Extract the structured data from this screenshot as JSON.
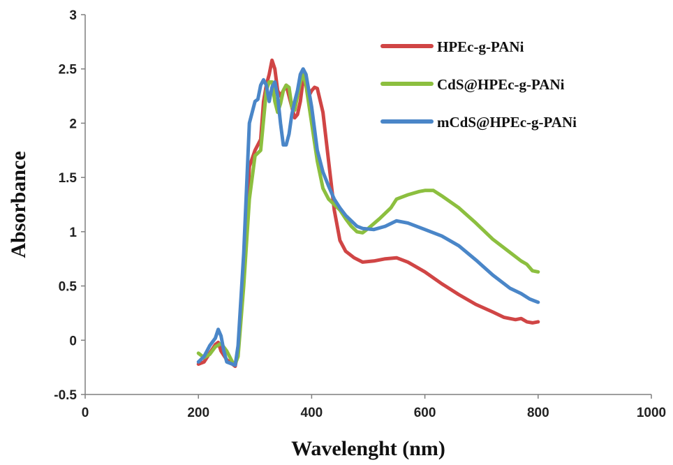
{
  "chart_data": {
    "type": "line",
    "title": "",
    "xlabel": "Wavelenght (nm)",
    "ylabel": "Absorbance",
    "xlim": [
      0,
      1000
    ],
    "ylim": [
      -0.5,
      3
    ],
    "xticks": [
      0,
      200,
      400,
      600,
      800,
      1000
    ],
    "yticks": [
      -0.5,
      0,
      0.5,
      1,
      1.5,
      2,
      2.5,
      3
    ],
    "xtick_labels": [
      "0",
      "200",
      "400",
      "600",
      "800",
      "1000"
    ],
    "ytick_labels": [
      "-0.5",
      "0",
      "0.5",
      "1",
      "1.5",
      "2",
      "2.5",
      "3"
    ],
    "grid": false,
    "legend_position": "top-right",
    "series": [
      {
        "name": "HPEc-g-PANi",
        "color": "#d04545",
        "points": [
          [
            200,
            -0.22
          ],
          [
            210,
            -0.2
          ],
          [
            220,
            -0.12
          ],
          [
            230,
            -0.04
          ],
          [
            235,
            -0.02
          ],
          [
            240,
            -0.1
          ],
          [
            250,
            -0.18
          ],
          [
            260,
            -0.22
          ],
          [
            265,
            -0.24
          ],
          [
            270,
            -0.1
          ],
          [
            280,
            0.6
          ],
          [
            290,
            1.6
          ],
          [
            300,
            1.75
          ],
          [
            310,
            1.85
          ],
          [
            315,
            2.2
          ],
          [
            320,
            2.35
          ],
          [
            325,
            2.45
          ],
          [
            330,
            2.58
          ],
          [
            335,
            2.5
          ],
          [
            340,
            2.3
          ],
          [
            345,
            2.25
          ],
          [
            350,
            2.3
          ],
          [
            355,
            2.35
          ],
          [
            360,
            2.25
          ],
          [
            365,
            2.15
          ],
          [
            370,
            2.05
          ],
          [
            375,
            2.08
          ],
          [
            380,
            2.2
          ],
          [
            385,
            2.4
          ],
          [
            390,
            2.35
          ],
          [
            395,
            2.25
          ],
          [
            400,
            2.3
          ],
          [
            405,
            2.33
          ],
          [
            410,
            2.32
          ],
          [
            420,
            2.1
          ],
          [
            430,
            1.65
          ],
          [
            440,
            1.2
          ],
          [
            450,
            0.92
          ],
          [
            460,
            0.82
          ],
          [
            475,
            0.76
          ],
          [
            490,
            0.72
          ],
          [
            510,
            0.73
          ],
          [
            530,
            0.75
          ],
          [
            550,
            0.76
          ],
          [
            570,
            0.72
          ],
          [
            600,
            0.63
          ],
          [
            630,
            0.52
          ],
          [
            660,
            0.42
          ],
          [
            690,
            0.33
          ],
          [
            720,
            0.26
          ],
          [
            740,
            0.21
          ],
          [
            760,
            0.19
          ],
          [
            770,
            0.2
          ],
          [
            780,
            0.17
          ],
          [
            790,
            0.16
          ],
          [
            800,
            0.17
          ]
        ]
      },
      {
        "name": "CdS@HPEc-g-PANi",
        "color": "#8cbf3f",
        "points": [
          [
            200,
            -0.12
          ],
          [
            210,
            -0.16
          ],
          [
            220,
            -0.13
          ],
          [
            230,
            -0.06
          ],
          [
            240,
            -0.03
          ],
          [
            250,
            -0.1
          ],
          [
            260,
            -0.2
          ],
          [
            265,
            -0.22
          ],
          [
            270,
            -0.15
          ],
          [
            280,
            0.5
          ],
          [
            290,
            1.3
          ],
          [
            300,
            1.7
          ],
          [
            310,
            1.75
          ],
          [
            320,
            2.3
          ],
          [
            325,
            2.38
          ],
          [
            330,
            2.38
          ],
          [
            335,
            2.2
          ],
          [
            340,
            2.1
          ],
          [
            345,
            2.18
          ],
          [
            350,
            2.3
          ],
          [
            355,
            2.35
          ],
          [
            360,
            2.33
          ],
          [
            365,
            2.15
          ],
          [
            370,
            2.12
          ],
          [
            375,
            2.25
          ],
          [
            380,
            2.38
          ],
          [
            385,
            2.45
          ],
          [
            390,
            2.35
          ],
          [
            400,
            2.0
          ],
          [
            410,
            1.65
          ],
          [
            420,
            1.4
          ],
          [
            430,
            1.3
          ],
          [
            440,
            1.25
          ],
          [
            450,
            1.2
          ],
          [
            460,
            1.12
          ],
          [
            470,
            1.05
          ],
          [
            480,
            1.0
          ],
          [
            490,
            0.99
          ],
          [
            500,
            1.03
          ],
          [
            520,
            1.12
          ],
          [
            540,
            1.22
          ],
          [
            550,
            1.3
          ],
          [
            570,
            1.34
          ],
          [
            590,
            1.37
          ],
          [
            600,
            1.38
          ],
          [
            615,
            1.38
          ],
          [
            630,
            1.33
          ],
          [
            660,
            1.22
          ],
          [
            690,
            1.08
          ],
          [
            720,
            0.93
          ],
          [
            750,
            0.81
          ],
          [
            770,
            0.73
          ],
          [
            780,
            0.7
          ],
          [
            790,
            0.64
          ],
          [
            800,
            0.63
          ]
        ]
      },
      {
        "name": "mCdS@HPEc-g-PANi",
        "color": "#4a86c8",
        "points": [
          [
            200,
            -0.2
          ],
          [
            210,
            -0.15
          ],
          [
            220,
            -0.05
          ],
          [
            230,
            0.02
          ],
          [
            235,
            0.1
          ],
          [
            240,
            0.04
          ],
          [
            245,
            -0.1
          ],
          [
            250,
            -0.2
          ],
          [
            260,
            -0.22
          ],
          [
            265,
            -0.23
          ],
          [
            270,
            -0.05
          ],
          [
            280,
            0.8
          ],
          [
            290,
            2.0
          ],
          [
            300,
            2.2
          ],
          [
            305,
            2.22
          ],
          [
            310,
            2.35
          ],
          [
            315,
            2.4
          ],
          [
            320,
            2.35
          ],
          [
            325,
            2.2
          ],
          [
            330,
            2.33
          ],
          [
            335,
            2.38
          ],
          [
            340,
            2.25
          ],
          [
            345,
            2.0
          ],
          [
            350,
            1.8
          ],
          [
            355,
            1.8
          ],
          [
            360,
            1.9
          ],
          [
            365,
            2.08
          ],
          [
            370,
            2.2
          ],
          [
            375,
            2.3
          ],
          [
            380,
            2.45
          ],
          [
            385,
            2.5
          ],
          [
            390,
            2.45
          ],
          [
            400,
            2.15
          ],
          [
            410,
            1.75
          ],
          [
            420,
            1.55
          ],
          [
            430,
            1.42
          ],
          [
            440,
            1.3
          ],
          [
            450,
            1.22
          ],
          [
            460,
            1.15
          ],
          [
            470,
            1.1
          ],
          [
            480,
            1.05
          ],
          [
            490,
            1.03
          ],
          [
            510,
            1.02
          ],
          [
            530,
            1.05
          ],
          [
            550,
            1.1
          ],
          [
            570,
            1.08
          ],
          [
            600,
            1.02
          ],
          [
            630,
            0.96
          ],
          [
            660,
            0.87
          ],
          [
            690,
            0.74
          ],
          [
            720,
            0.6
          ],
          [
            750,
            0.48
          ],
          [
            770,
            0.43
          ],
          [
            785,
            0.38
          ],
          [
            800,
            0.35
          ]
        ]
      }
    ]
  }
}
